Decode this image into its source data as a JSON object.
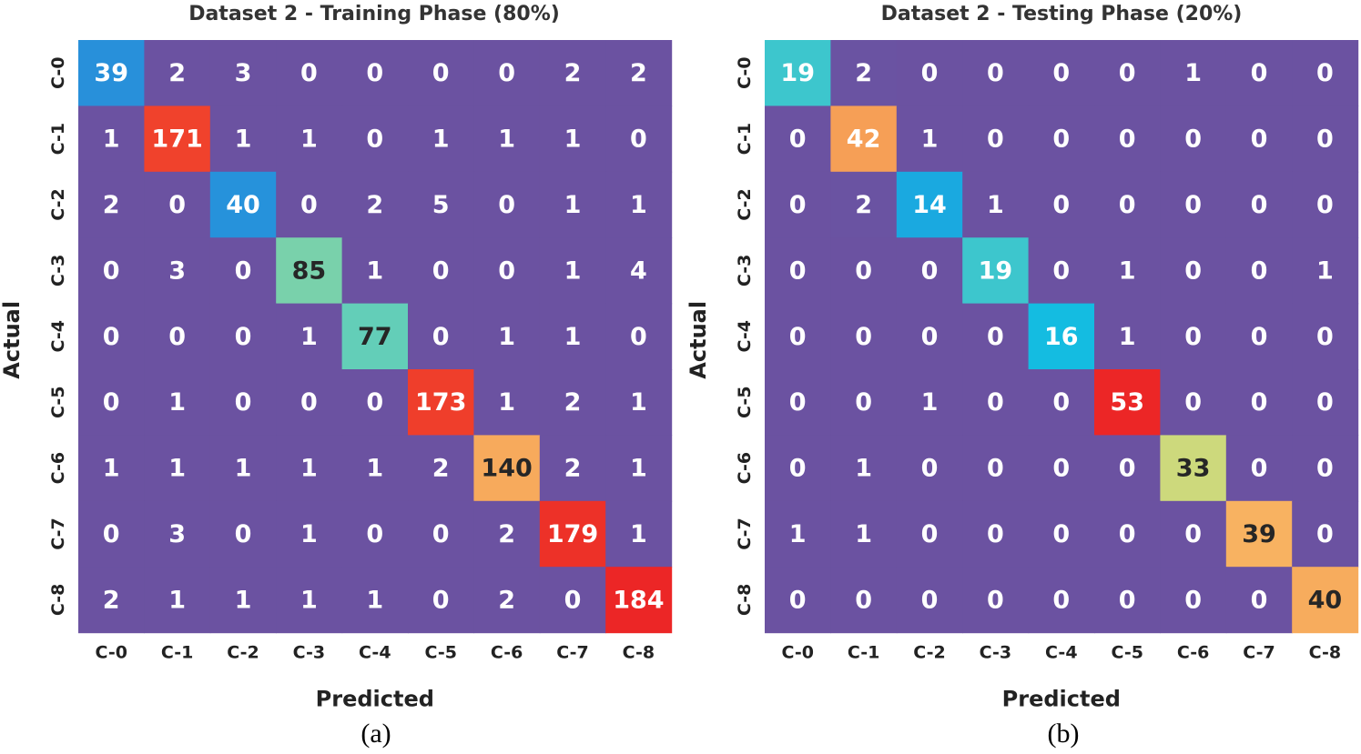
{
  "chart_data": [
    {
      "type": "heatmap",
      "title": "Dataset 2 - Training Phase (80%)",
      "xlabel": "Predicted",
      "ylabel": "Actual",
      "caption": "(a)",
      "x_categories": [
        "C-0",
        "C-1",
        "C-2",
        "C-3",
        "C-4",
        "C-5",
        "C-6",
        "C-7",
        "C-8"
      ],
      "y_categories": [
        "C-0",
        "C-1",
        "C-2",
        "C-3",
        "C-4",
        "C-5",
        "C-6",
        "C-7",
        "C-8"
      ],
      "values": [
        [
          39,
          2,
          3,
          0,
          0,
          0,
          0,
          2,
          2
        ],
        [
          1,
          171,
          1,
          1,
          0,
          1,
          1,
          1,
          0
        ],
        [
          2,
          0,
          40,
          0,
          2,
          5,
          0,
          1,
          1
        ],
        [
          0,
          3,
          0,
          85,
          1,
          0,
          0,
          1,
          4
        ],
        [
          0,
          0,
          0,
          1,
          77,
          0,
          1,
          1,
          0
        ],
        [
          0,
          1,
          0,
          0,
          0,
          173,
          1,
          2,
          1
        ],
        [
          1,
          1,
          1,
          1,
          1,
          2,
          140,
          2,
          1
        ],
        [
          0,
          3,
          0,
          1,
          0,
          0,
          2,
          179,
          1
        ],
        [
          2,
          1,
          1,
          1,
          1,
          0,
          2,
          0,
          184
        ]
      ]
    },
    {
      "type": "heatmap",
      "title": "Dataset 2 - Testing Phase (20%)",
      "xlabel": "Predicted",
      "ylabel": "Actual",
      "caption": "(b)",
      "x_categories": [
        "C-0",
        "C-1",
        "C-2",
        "C-3",
        "C-4",
        "C-5",
        "C-6",
        "C-7",
        "C-8"
      ],
      "y_categories": [
        "C-0",
        "C-1",
        "C-2",
        "C-3",
        "C-4",
        "C-5",
        "C-6",
        "C-7",
        "C-8"
      ],
      "values": [
        [
          19,
          2,
          0,
          0,
          0,
          0,
          1,
          0,
          0
        ],
        [
          0,
          42,
          1,
          0,
          0,
          0,
          0,
          0,
          0
        ],
        [
          0,
          2,
          14,
          1,
          0,
          0,
          0,
          0,
          0
        ],
        [
          0,
          0,
          0,
          19,
          0,
          1,
          0,
          0,
          1
        ],
        [
          0,
          0,
          0,
          0,
          16,
          1,
          0,
          0,
          0
        ],
        [
          0,
          0,
          1,
          0,
          0,
          53,
          0,
          0,
          0
        ],
        [
          0,
          1,
          0,
          0,
          0,
          0,
          33,
          0,
          0
        ],
        [
          1,
          1,
          0,
          0,
          0,
          0,
          0,
          39,
          0
        ],
        [
          0,
          0,
          0,
          0,
          0,
          0,
          0,
          0,
          40
        ]
      ]
    }
  ]
}
